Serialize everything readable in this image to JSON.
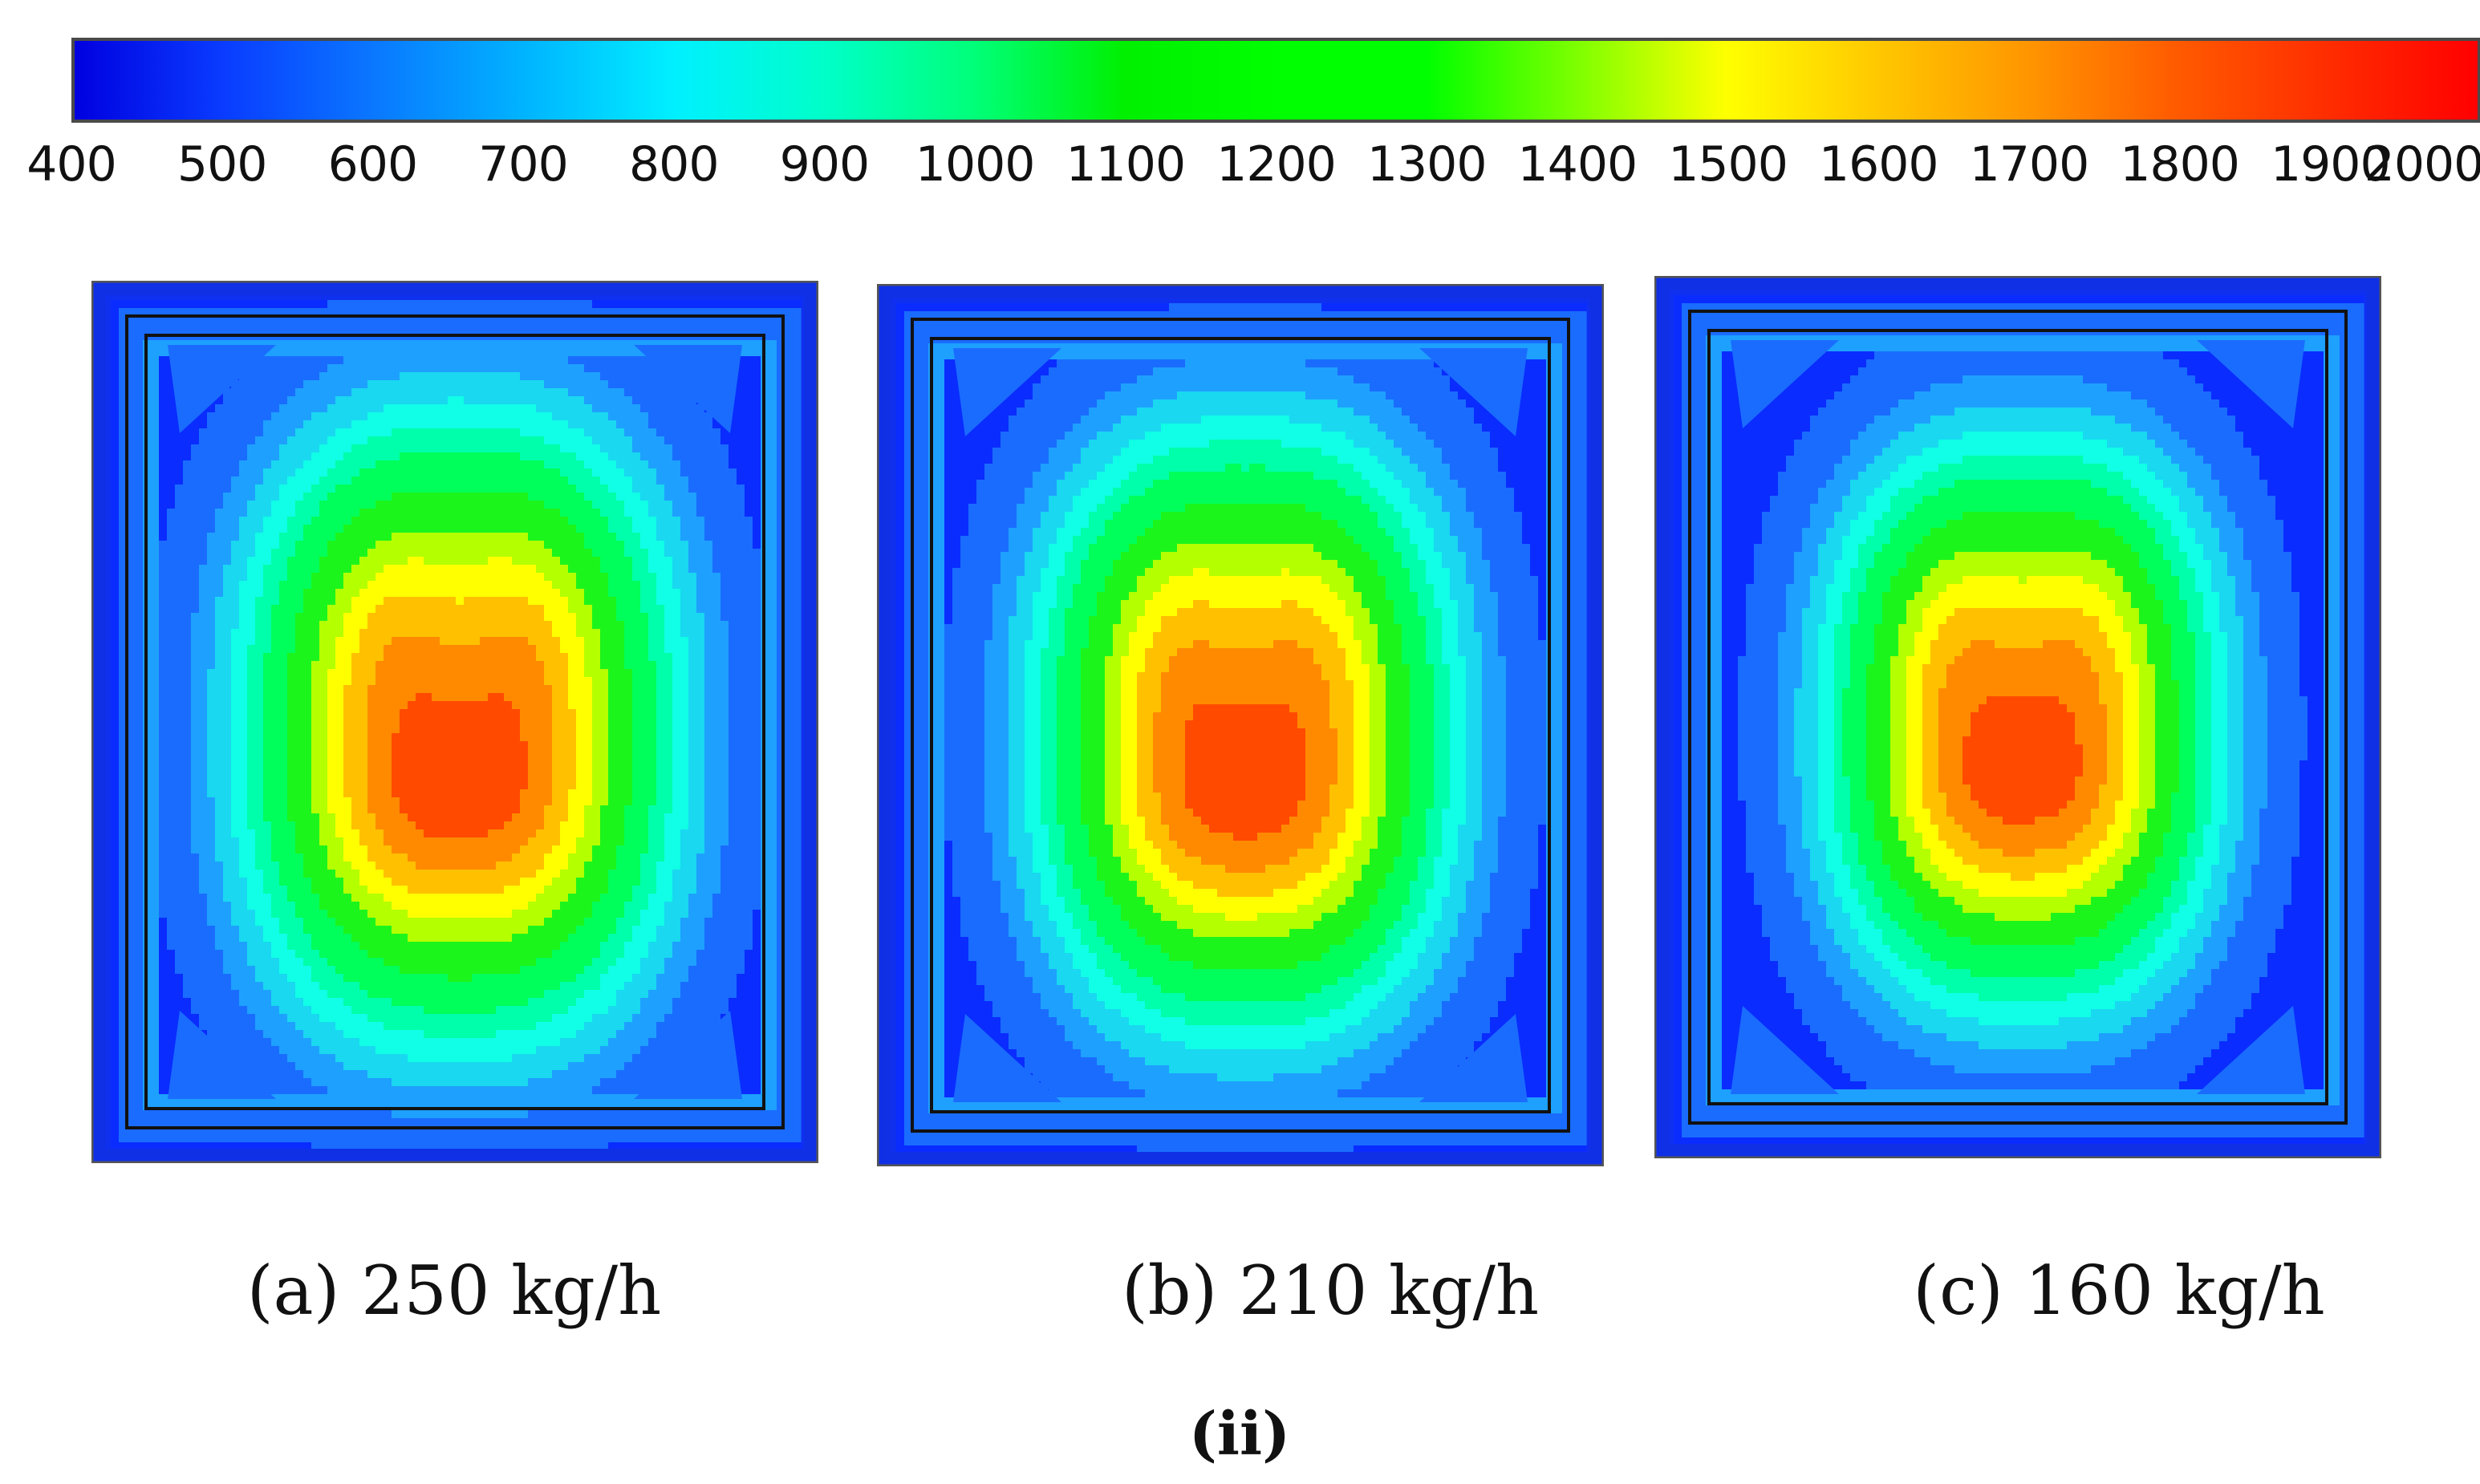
{
  "chart_data": {
    "type": "heatmap",
    "title": "",
    "colorbar": {
      "ticks": [
        "400",
        "500",
        "600",
        "700",
        "800",
        "900",
        "1000",
        "1100",
        "1200",
        "1300",
        "1400",
        "1500",
        "1600",
        "1700",
        "1800",
        "1900",
        "2000"
      ],
      "range": [
        400,
        2000
      ],
      "colors": [
        "#0000e0",
        "#0a3cff",
        "#0a78ff",
        "#00b4ff",
        "#00f0ff",
        "#00ffc8",
        "#00ff78",
        "#00f000",
        "#00ff00",
        "#00ff00",
        "#7dff00",
        "#ffff00",
        "#ffc800",
        "#ff9600",
        "#ff5a00",
        "#ff2d00",
        "#ff0000"
      ]
    },
    "panels": [
      {
        "caption": "(a) 250 kg/h",
        "mass_flow_kg_h": 250,
        "peak": 1950,
        "core_scale": 1.0
      },
      {
        "caption": "(b) 210 kg/h",
        "mass_flow_kg_h": 210,
        "peak": 1950,
        "core_scale": 0.96
      },
      {
        "caption": "(c) 160 kg/h",
        "mass_flow_kg_h": 160,
        "peak": 1950,
        "core_scale": 0.9
      }
    ],
    "subfigure_label": "(ii)",
    "levels": [
      {
        "min": 400,
        "color": "#0a2cff"
      },
      {
        "min": 600,
        "color": "#1a6cff"
      },
      {
        "min": 750,
        "color": "#1ea0ff"
      },
      {
        "min": 850,
        "color": "#19d8f0"
      },
      {
        "min": 950,
        "color": "#10ffe6"
      },
      {
        "min": 1050,
        "color": "#00ffaa"
      },
      {
        "min": 1150,
        "color": "#00ff5a"
      },
      {
        "min": 1300,
        "color": "#1cf51c"
      },
      {
        "min": 1450,
        "color": "#b4ff00"
      },
      {
        "min": 1550,
        "color": "#ffff00"
      },
      {
        "min": 1650,
        "color": "#ffc000"
      },
      {
        "min": 1750,
        "color": "#ff8a00"
      },
      {
        "min": 1850,
        "color": "#ff4a00"
      },
      {
        "min": 1920,
        "color": "#ff1500"
      }
    ]
  }
}
